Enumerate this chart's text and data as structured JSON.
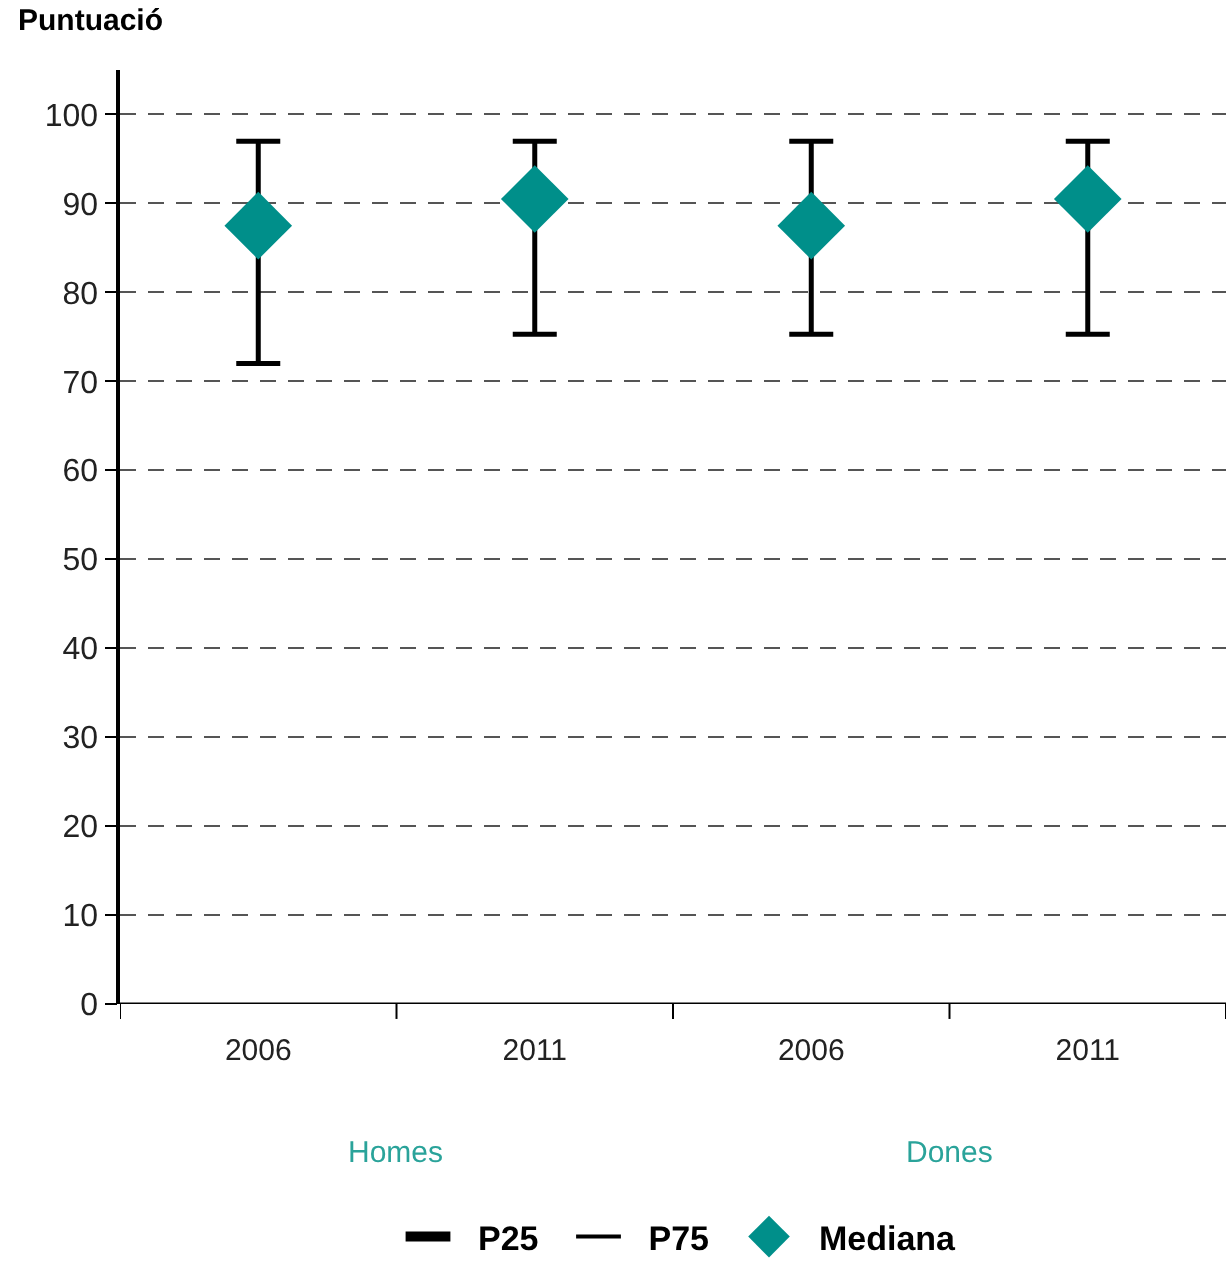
{
  "chart_data": {
    "type": "scatter",
    "ylabel": "Puntuació",
    "categories": [
      "2006",
      "2011",
      "2006",
      "2011"
    ],
    "series": [
      {
        "name": "P25",
        "color": "#000000",
        "values": [
          null,
          null,
          null,
          null
        ]
      },
      {
        "name": "P75",
        "color": "#000000",
        "values": [
          null,
          null,
          null,
          null
        ]
      },
      {
        "name": "Mediana",
        "color": "#008f8a",
        "marker": "diamond",
        "values": [
          87.5,
          90.5,
          87.5,
          90.5
        ],
        "errors": [
          [
            72,
            97
          ],
          [
            75.3,
            97
          ],
          [
            75.3,
            97
          ],
          [
            75.3,
            97
          ]
        ]
      }
    ],
    "ylim": [
      0,
      105
    ],
    "yticks": [
      0,
      10,
      20,
      30,
      40,
      50,
      60,
      70,
      80,
      90,
      100
    ],
    "grid": "y",
    "legend": "bottom",
    "annotations": [
      "Homes",
      "Dones"
    ]
  }
}
